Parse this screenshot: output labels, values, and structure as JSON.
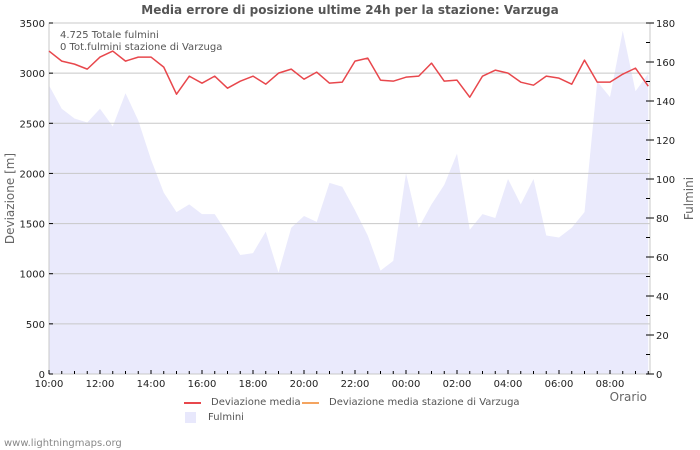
{
  "title": "Media errore di posizione ultime 24h per la stazione: Varzuga",
  "info": {
    "total": "4.725 Totale fulmini",
    "station_total": "0 Tot.fulmini stazione di Varzuga"
  },
  "axes": {
    "y_left_title": "Deviazione  [m]",
    "y_right_title": "Fulmini",
    "x_title": "Orario",
    "y_left_ticks": [
      "0",
      "500",
      "1000",
      "1500",
      "2000",
      "2500",
      "3000",
      "3500"
    ],
    "y_right_ticks": [
      "0",
      "20",
      "40",
      "60",
      "80",
      "100",
      "120",
      "140",
      "160",
      "180"
    ],
    "x_ticks": [
      "10:00",
      "12:00",
      "14:00",
      "16:00",
      "18:00",
      "20:00",
      "22:00",
      "00:00",
      "02:00",
      "04:00",
      "06:00",
      "08:00"
    ]
  },
  "legend": {
    "items": [
      {
        "label": "Deviazione media",
        "color": "#e8474c",
        "kind": "line"
      },
      {
        "label": "Deviazione media stazione di Varzuga",
        "color": "#f4a460",
        "kind": "line"
      },
      {
        "label": "Fulmini",
        "color": "#e8e8fc",
        "kind": "area"
      }
    ]
  },
  "footer": "www.lightningmaps.org",
  "colors": {
    "deviation_line": "#e8474c",
    "station_line": "#f4a460",
    "fulmini_area": "#eaeafc",
    "grid": "#c8c8c8"
  },
  "chart_data": {
    "type": "line",
    "title": "Media errore di posizione ultime 24h per la stazione: Varzuga",
    "xlabel": "Orario",
    "ylabel": "Deviazione  [m]",
    "ylabel_right": "Fulmini",
    "ylim": [
      0,
      3500
    ],
    "ylim_right": [
      0,
      180
    ],
    "grid": true,
    "legend_position": "bottom",
    "x": [
      "10:00",
      "10:30",
      "11:00",
      "11:30",
      "12:00",
      "12:30",
      "13:00",
      "13:30",
      "14:00",
      "14:30",
      "15:00",
      "15:30",
      "16:00",
      "16:30",
      "17:00",
      "17:30",
      "18:00",
      "18:30",
      "19:00",
      "19:30",
      "20:00",
      "20:30",
      "21:00",
      "21:30",
      "22:00",
      "22:30",
      "23:00",
      "23:30",
      "00:00",
      "00:30",
      "01:00",
      "01:30",
      "02:00",
      "02:30",
      "03:00",
      "03:30",
      "04:00",
      "04:30",
      "05:00",
      "05:30",
      "06:00",
      "06:30",
      "07:00",
      "07:30",
      "08:00",
      "08:30",
      "09:00",
      "09:30"
    ],
    "series": [
      {
        "name": "Deviazione media",
        "type": "line",
        "axis": "left",
        "values": [
          3220,
          3120,
          3090,
          3040,
          3160,
          3220,
          3120,
          3160,
          3160,
          3060,
          2790,
          2970,
          2900,
          2970,
          2850,
          2920,
          2970,
          2890,
          3000,
          3040,
          2940,
          3010,
          2900,
          2910,
          3120,
          3150,
          2930,
          2920,
          2960,
          2970,
          3100,
          2920,
          2930,
          2760,
          2970,
          3030,
          3000,
          2910,
          2880,
          2970,
          2950,
          2890,
          3130,
          2910,
          2910,
          2990,
          3050,
          2870
        ]
      },
      {
        "name": "Deviazione media stazione di Varzuga",
        "type": "line",
        "axis": "left",
        "values": []
      },
      {
        "name": "Fulmini",
        "type": "area",
        "axis": "right",
        "values": [
          148,
          136,
          131,
          129,
          136,
          127,
          144,
          130,
          110,
          93,
          83,
          87,
          82,
          82,
          72,
          61,
          62,
          73,
          52,
          75,
          81,
          78,
          98,
          96,
          84,
          71,
          53,
          58,
          103,
          75,
          87,
          97,
          113,
          74,
          82,
          80,
          100,
          87,
          100,
          71,
          70,
          75,
          83,
          150,
          142,
          176,
          145,
          154
        ]
      }
    ]
  }
}
